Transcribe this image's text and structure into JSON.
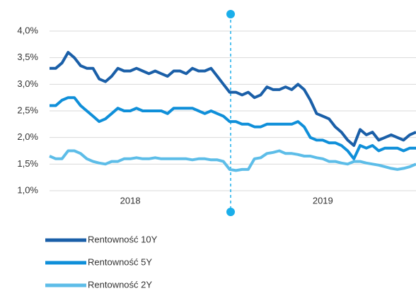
{
  "chart_data": {
    "type": "line",
    "categories": [
      null,
      null,
      null,
      null,
      null,
      null,
      null,
      null,
      null,
      null,
      null,
      null,
      null,
      "2018",
      null,
      null,
      null,
      null,
      null,
      null,
      null,
      null,
      null,
      null,
      null,
      null,
      null,
      null,
      null,
      null,
      null,
      null,
      null,
      null,
      null,
      null,
      null,
      null,
      null,
      null,
      null,
      null,
      null,
      null,
      "2019",
      null,
      null,
      null,
      null,
      null,
      null,
      null,
      null,
      null,
      null,
      null,
      null,
      null,
      null,
      null
    ],
    "series": [
      {
        "name": "Rentowność 10Y",
        "color": "#1a5fa8",
        "values": [
          3.3,
          3.3,
          3.4,
          3.6,
          3.5,
          3.35,
          3.3,
          3.3,
          3.1,
          3.05,
          3.15,
          3.3,
          3.25,
          3.25,
          3.3,
          3.25,
          3.2,
          3.25,
          3.2,
          3.15,
          3.25,
          3.25,
          3.2,
          3.3,
          3.25,
          3.25,
          3.3,
          3.15,
          3.0,
          2.85,
          2.85,
          2.8,
          2.85,
          2.75,
          2.8,
          2.95,
          2.9,
          2.9,
          2.95,
          2.9,
          3.0,
          2.9,
          2.7,
          2.45,
          2.4,
          2.35,
          2.2,
          2.1,
          1.95,
          1.85,
          2.15,
          2.05,
          2.1,
          1.95,
          2.0,
          2.05,
          2.0,
          1.95,
          2.05,
          2.1
        ]
      },
      {
        "name": "Rentowność 5Y",
        "color": "#0f8fd9",
        "values": [
          2.6,
          2.6,
          2.7,
          2.75,
          2.75,
          2.6,
          2.5,
          2.4,
          2.3,
          2.35,
          2.45,
          2.55,
          2.5,
          2.5,
          2.55,
          2.5,
          2.5,
          2.5,
          2.5,
          2.45,
          2.55,
          2.55,
          2.55,
          2.55,
          2.5,
          2.45,
          2.5,
          2.45,
          2.4,
          2.3,
          2.3,
          2.25,
          2.25,
          2.2,
          2.2,
          2.25,
          2.25,
          2.25,
          2.25,
          2.25,
          2.3,
          2.2,
          2.0,
          1.95,
          1.95,
          1.9,
          1.9,
          1.85,
          1.75,
          1.6,
          1.85,
          1.8,
          1.85,
          1.75,
          1.8,
          1.8,
          1.8,
          1.75,
          1.8,
          1.8
        ]
      },
      {
        "name": "Rentowność 2Y",
        "color": "#5dbde8",
        "values": [
          1.65,
          1.6,
          1.6,
          1.75,
          1.75,
          1.7,
          1.6,
          1.55,
          1.52,
          1.5,
          1.55,
          1.55,
          1.6,
          1.6,
          1.62,
          1.6,
          1.6,
          1.62,
          1.6,
          1.6,
          1.6,
          1.6,
          1.6,
          1.58,
          1.6,
          1.6,
          1.58,
          1.58,
          1.55,
          1.4,
          1.38,
          1.4,
          1.4,
          1.6,
          1.62,
          1.7,
          1.72,
          1.75,
          1.7,
          1.7,
          1.68,
          1.65,
          1.65,
          1.62,
          1.6,
          1.55,
          1.55,
          1.52,
          1.5,
          1.55,
          1.55,
          1.52,
          1.5,
          1.48,
          1.45,
          1.42,
          1.4,
          1.42,
          1.45,
          1.5
        ]
      }
    ],
    "ylim": [
      1.0,
      4.0
    ],
    "yticks": [
      {
        "value": 1.0,
        "label": "1,0%"
      },
      {
        "value": 1.5,
        "label": "1,5%"
      },
      {
        "value": 2.0,
        "label": "2,0%"
      },
      {
        "value": 2.5,
        "label": "2,5%"
      },
      {
        "value": 3.0,
        "label": "3,0%"
      },
      {
        "value": 3.5,
        "label": "3,5%"
      },
      {
        "value": 4.0,
        "label": "4,0%"
      }
    ],
    "grid": true
  }
}
